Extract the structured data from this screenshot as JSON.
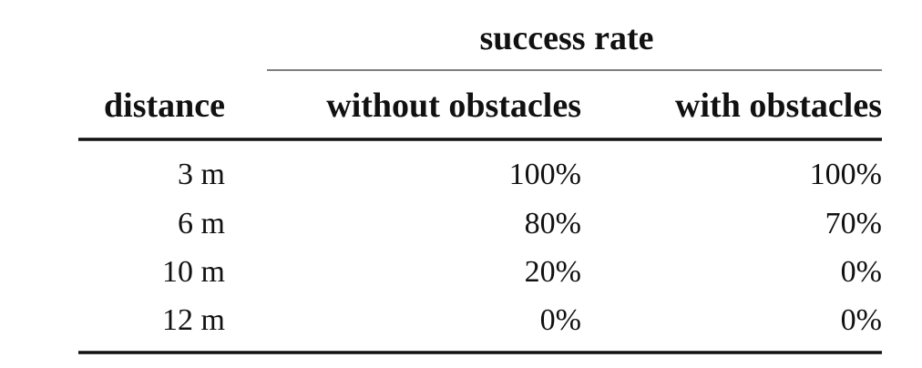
{
  "table": {
    "group_header": "success rate",
    "columns": [
      "distance",
      "without obstacles",
      "with obstacles"
    ],
    "rows": [
      [
        "3 m",
        "100%",
        "100%"
      ],
      [
        "6 m",
        "80%",
        "70%"
      ],
      [
        "10 m",
        "20%",
        "0%"
      ],
      [
        "12 m",
        "0%",
        "0%"
      ]
    ]
  }
}
